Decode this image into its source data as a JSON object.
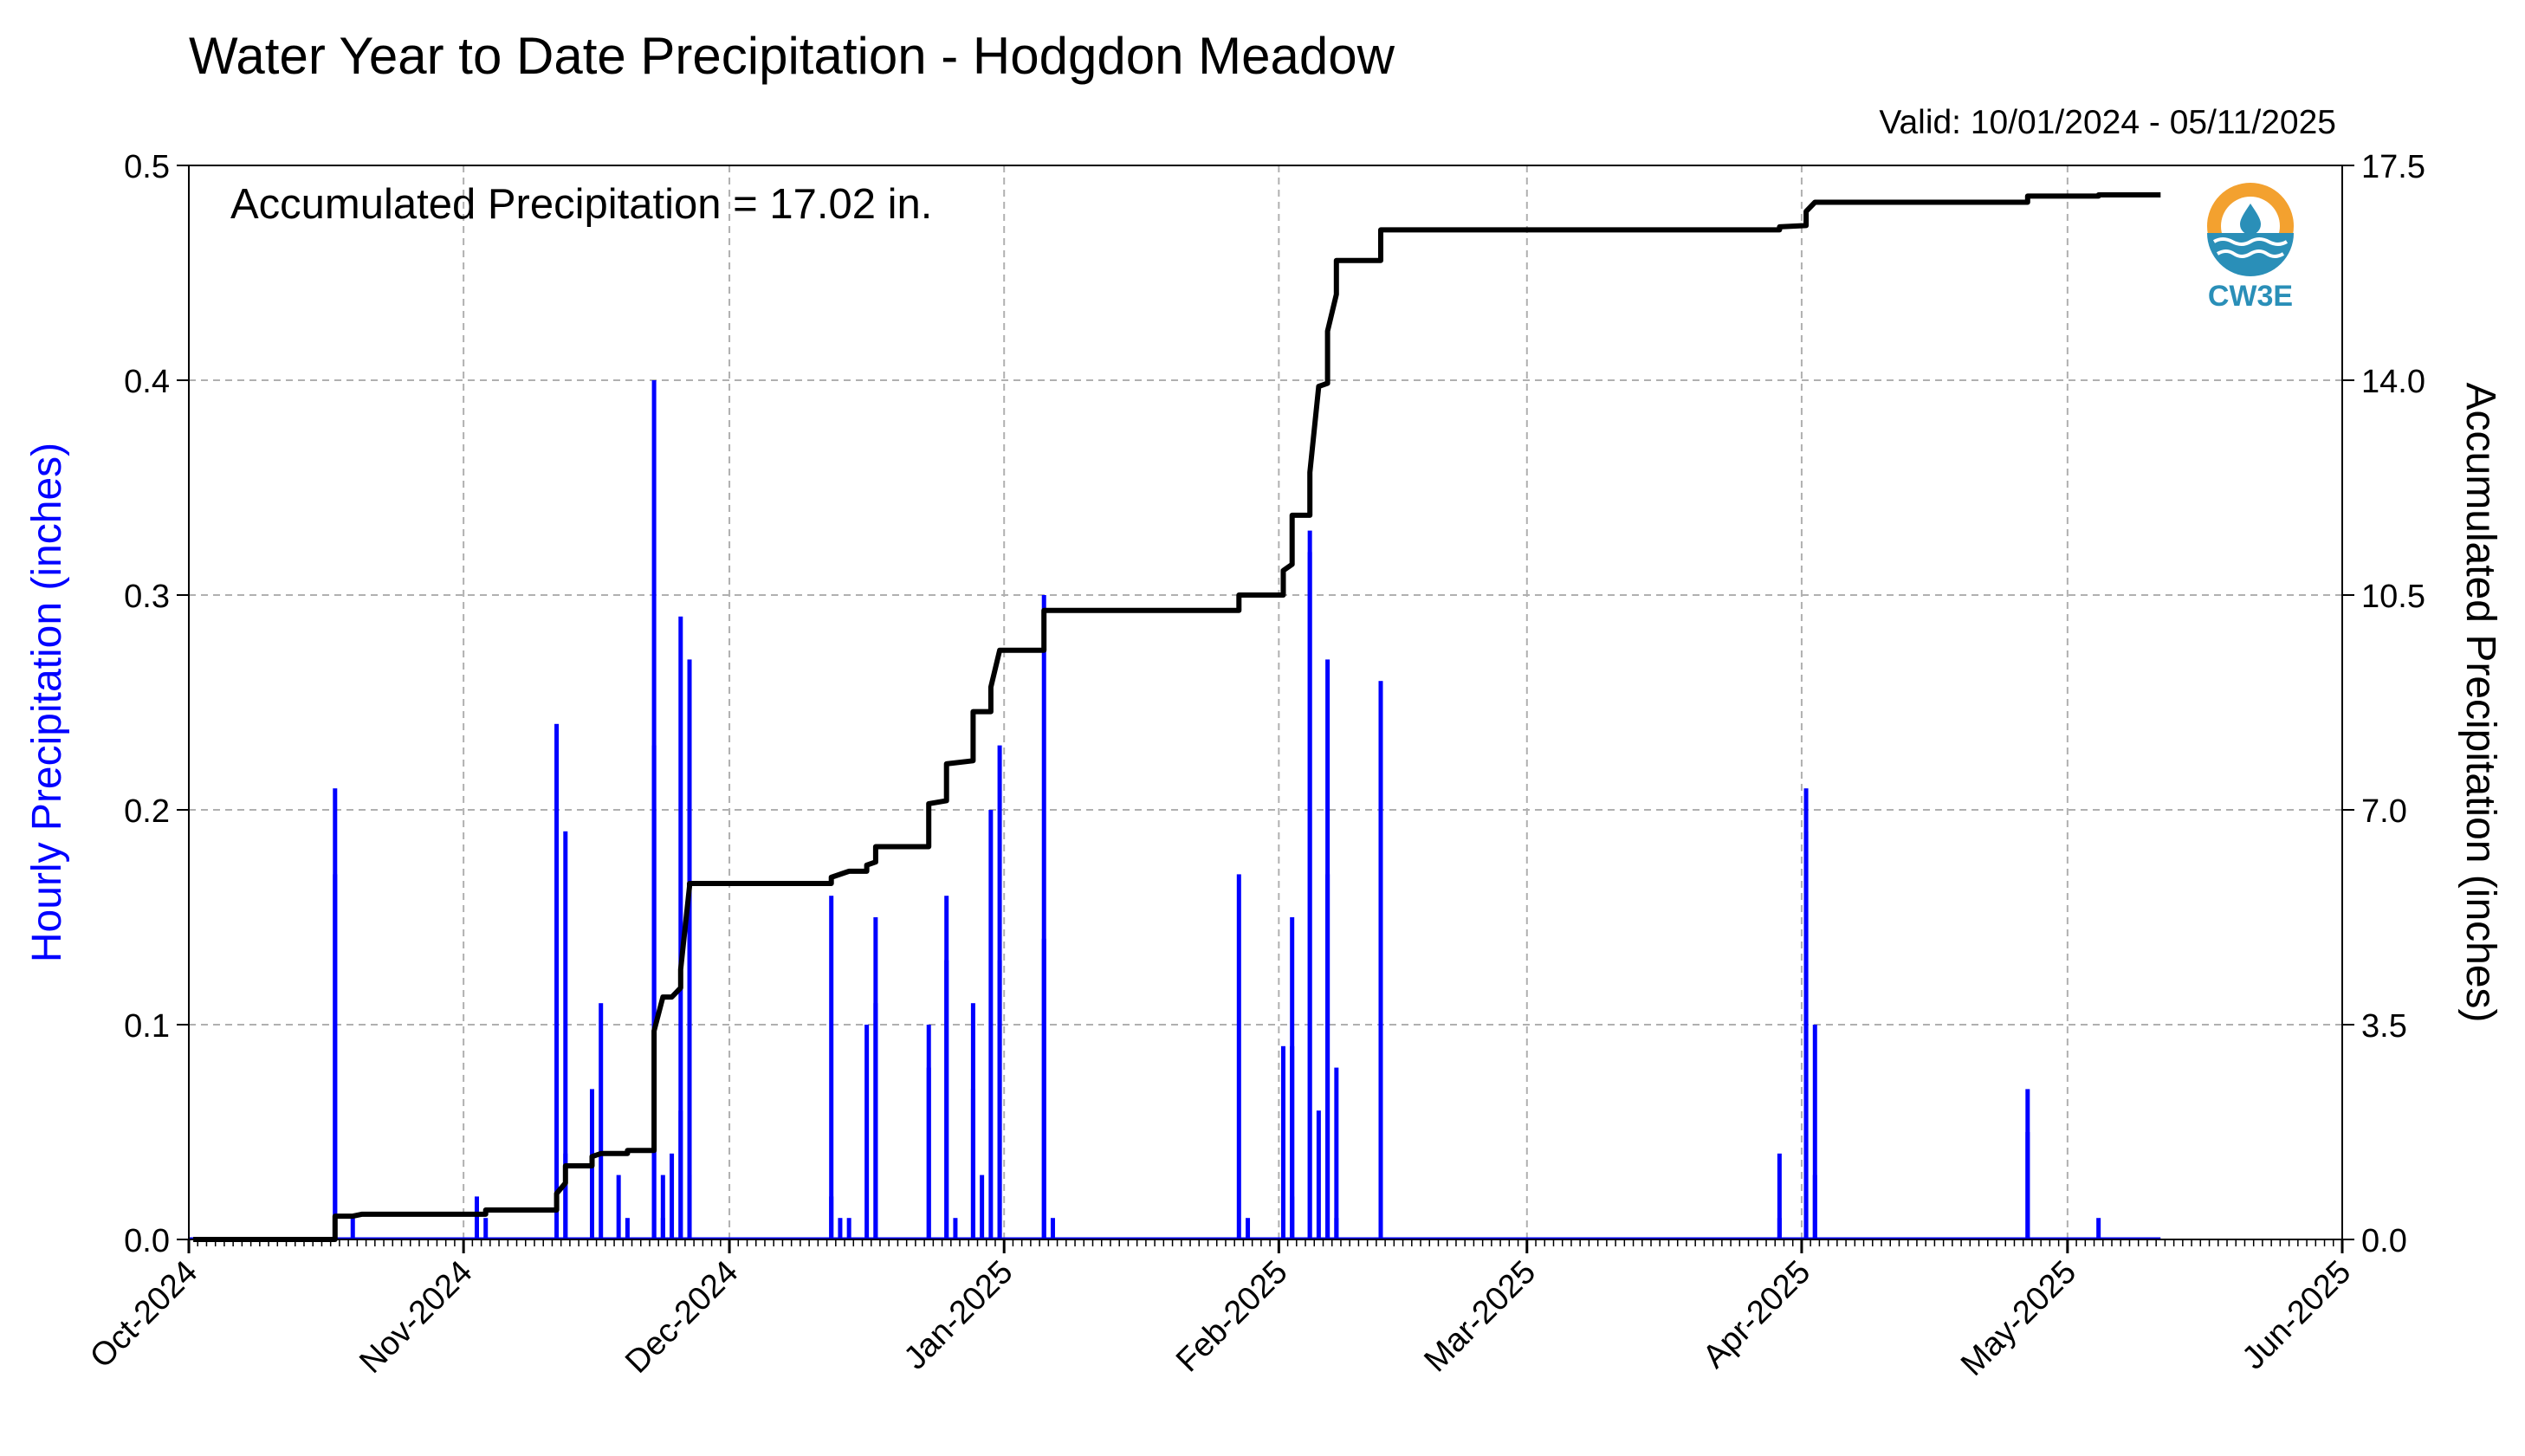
{
  "header": {
    "title": "Water Year to Date Precipitation - Hodgdon Meadow",
    "valid": "Valid: 10/01/2024 - 05/11/2025",
    "accumulated": "Accumulated Precipitation = 17.02 in."
  },
  "logo": {
    "text": "CW3E",
    "colors": {
      "sun": "#f3a12f",
      "water": "#2a8fb8"
    }
  },
  "colors": {
    "hourly": "#0000ff",
    "accumulated": "#000000",
    "grid": "#b0b0b0"
  },
  "chart_data": {
    "type": "bar",
    "title": "Water Year to Date Precipitation - Hodgdon Meadow",
    "xlabel": "",
    "ylabel": "Hourly Precipitation (inches)",
    "ylabel_right": "Accumulated Precipitation (inches)",
    "ylim": [
      0,
      0.5
    ],
    "ylim_right": [
      0,
      17.5
    ],
    "yticks": [
      "0.0",
      "0.1",
      "0.2",
      "0.3",
      "0.4",
      "0.5"
    ],
    "yticks_right": [
      "0.0",
      "3.5",
      "7.0",
      "10.5",
      "14.0",
      "17.5"
    ],
    "xlim": [
      "2024-10-01",
      "2025-06-01"
    ],
    "xticks": [
      {
        "date": "2024-10-01",
        "label": "Oct-2024"
      },
      {
        "date": "2024-11-01",
        "label": "Nov-2024"
      },
      {
        "date": "2024-12-01",
        "label": "Dec-2024"
      },
      {
        "date": "2025-01-01",
        "label": "Jan-2025"
      },
      {
        "date": "2025-02-01",
        "label": "Feb-2025"
      },
      {
        "date": "2025-03-01",
        "label": "Mar-2025"
      },
      {
        "date": "2025-04-01",
        "label": "Apr-2025"
      },
      {
        "date": "2025-05-01",
        "label": "May-2025"
      },
      {
        "date": "2025-06-01",
        "label": "Jun-2025"
      }
    ],
    "grid": true,
    "series": [
      {
        "kind": "bar",
        "axis": "left",
        "color": "#0000ff",
        "points": [
          [
            "2024-10-17",
            0.17
          ],
          [
            "2024-10-17",
            0.21
          ],
          [
            "2024-10-19",
            0.01
          ],
          [
            "2024-11-02",
            0.02
          ],
          [
            "2024-11-03",
            0.01
          ],
          [
            "2024-11-11",
            0.24
          ],
          [
            "2024-11-12",
            0.04
          ],
          [
            "2024-11-12",
            0.19
          ],
          [
            "2024-11-15",
            0.07
          ],
          [
            "2024-11-16",
            0.11
          ],
          [
            "2024-11-18",
            0.03
          ],
          [
            "2024-11-19",
            0.01
          ],
          [
            "2024-11-22",
            0.4
          ],
          [
            "2024-11-22",
            0.23
          ],
          [
            "2024-11-22",
            0.2
          ],
          [
            "2024-11-23",
            0.03
          ],
          [
            "2024-11-23",
            0.01
          ],
          [
            "2024-11-24",
            0.04
          ],
          [
            "2024-11-25",
            0.06
          ],
          [
            "2024-11-25",
            0.29
          ],
          [
            "2024-11-26",
            0.27
          ],
          [
            "2024-11-26",
            0.03
          ],
          [
            "2024-12-12",
            0.16
          ],
          [
            "2024-12-12",
            0.02
          ],
          [
            "2024-12-13",
            0.01
          ],
          [
            "2024-12-14",
            0.01
          ],
          [
            "2024-12-16",
            0.1
          ],
          [
            "2024-12-17",
            0.11
          ],
          [
            "2024-12-17",
            0.15
          ],
          [
            "2024-12-23",
            0.1
          ],
          [
            "2024-12-23",
            0.08
          ],
          [
            "2024-12-25",
            0.16
          ],
          [
            "2024-12-25",
            0.13
          ],
          [
            "2024-12-26",
            0.01
          ],
          [
            "2024-12-28",
            0.11
          ],
          [
            "2024-12-28",
            0.07
          ],
          [
            "2024-12-29",
            0.03
          ],
          [
            "2024-12-30",
            0.2
          ],
          [
            "2024-12-31",
            0.23
          ],
          [
            "2024-12-31",
            0.13
          ],
          [
            "2025-01-05",
            0.3
          ],
          [
            "2025-01-05",
            0.14
          ],
          [
            "2025-01-06",
            0.01
          ],
          [
            "2025-01-27",
            0.17
          ],
          [
            "2025-01-28",
            0.01
          ],
          [
            "2025-02-01",
            0.09
          ],
          [
            "2025-02-02",
            0.15
          ],
          [
            "2025-02-02",
            0.09
          ],
          [
            "2025-02-02",
            0.02
          ],
          [
            "2025-02-04",
            0.33
          ],
          [
            "2025-02-04",
            0.32
          ],
          [
            "2025-02-05",
            0.06
          ],
          [
            "2025-02-06",
            0.27
          ],
          [
            "2025-02-06",
            0.17
          ],
          [
            "2025-02-07",
            0.08
          ],
          [
            "2025-02-07",
            0.01
          ],
          [
            "2025-02-12",
            0.26
          ],
          [
            "2025-02-12",
            0.14
          ],
          [
            "2025-03-29",
            0.04
          ],
          [
            "2025-03-29",
            0.01
          ],
          [
            "2025-04-01",
            0.21
          ],
          [
            "2025-04-01",
            0.19
          ],
          [
            "2025-04-02",
            0.1
          ],
          [
            "2025-04-02",
            0.03
          ],
          [
            "2025-04-26",
            0.07
          ],
          [
            "2025-04-26",
            0.05
          ],
          [
            "2025-05-04",
            0.01
          ]
        ]
      },
      {
        "kind": "line",
        "axis": "right",
        "color": "#000000",
        "points": [
          [
            "2024-10-01",
            0.0
          ],
          [
            "2024-10-17",
            0.0
          ],
          [
            "2024-10-17",
            0.38
          ],
          [
            "2024-10-19",
            0.38
          ],
          [
            "2024-10-20",
            0.41
          ],
          [
            "2024-11-03",
            0.41
          ],
          [
            "2024-11-03",
            0.48
          ],
          [
            "2024-11-11",
            0.48
          ],
          [
            "2024-11-11",
            0.75
          ],
          [
            "2024-11-12",
            0.92
          ],
          [
            "2024-11-12",
            1.2
          ],
          [
            "2024-11-15",
            1.2
          ],
          [
            "2024-11-15",
            1.35
          ],
          [
            "2024-11-16",
            1.4
          ],
          [
            "2024-11-19",
            1.4
          ],
          [
            "2024-11-19",
            1.45
          ],
          [
            "2024-11-22",
            1.45
          ],
          [
            "2024-11-22",
            2.6
          ],
          [
            "2024-11-22",
            3.4
          ],
          [
            "2024-11-23",
            3.95
          ],
          [
            "2024-11-24",
            3.95
          ],
          [
            "2024-11-25",
            4.1
          ],
          [
            "2024-11-25",
            4.4
          ],
          [
            "2024-11-26",
            5.75
          ],
          [
            "2024-11-26",
            5.8
          ],
          [
            "2024-12-12",
            5.8
          ],
          [
            "2024-12-12",
            5.9
          ],
          [
            "2024-12-13",
            5.95
          ],
          [
            "2024-12-14",
            6.0
          ],
          [
            "2024-12-16",
            6.0
          ],
          [
            "2024-12-16",
            6.1
          ],
          [
            "2024-12-17",
            6.15
          ],
          [
            "2024-12-17",
            6.4
          ],
          [
            "2024-12-23",
            6.4
          ],
          [
            "2024-12-23",
            7.1
          ],
          [
            "2024-12-25",
            7.15
          ],
          [
            "2024-12-25",
            7.75
          ],
          [
            "2024-12-28",
            7.8
          ],
          [
            "2024-12-28",
            8.6
          ],
          [
            "2024-12-30",
            8.6
          ],
          [
            "2024-12-30",
            9.0
          ],
          [
            "2024-12-31",
            9.6
          ],
          [
            "2025-01-05",
            9.6
          ],
          [
            "2025-01-05",
            10.25
          ],
          [
            "2025-01-27",
            10.25
          ],
          [
            "2025-01-27",
            10.5
          ],
          [
            "2025-02-01",
            10.5
          ],
          [
            "2025-02-01",
            10.9
          ],
          [
            "2025-02-02",
            11.0
          ],
          [
            "2025-02-02",
            11.8
          ],
          [
            "2025-02-04",
            11.8
          ],
          [
            "2025-02-04",
            12.5
          ],
          [
            "2025-02-05",
            13.9
          ],
          [
            "2025-02-06",
            13.95
          ],
          [
            "2025-02-06",
            14.8
          ],
          [
            "2025-02-07",
            15.4
          ],
          [
            "2025-02-07",
            15.95
          ],
          [
            "2025-02-12",
            15.95
          ],
          [
            "2025-02-12",
            16.45
          ],
          [
            "2025-03-29",
            16.45
          ],
          [
            "2025-03-29",
            16.5
          ],
          [
            "2025-04-01",
            16.52
          ],
          [
            "2025-04-01",
            16.75
          ],
          [
            "2025-04-02",
            16.9
          ],
          [
            "2025-04-26",
            16.9
          ],
          [
            "2025-04-26",
            17.0
          ],
          [
            "2025-05-04",
            17.0
          ],
          [
            "2025-05-04",
            17.02
          ],
          [
            "2025-05-11",
            17.02
          ]
        ]
      }
    ]
  }
}
